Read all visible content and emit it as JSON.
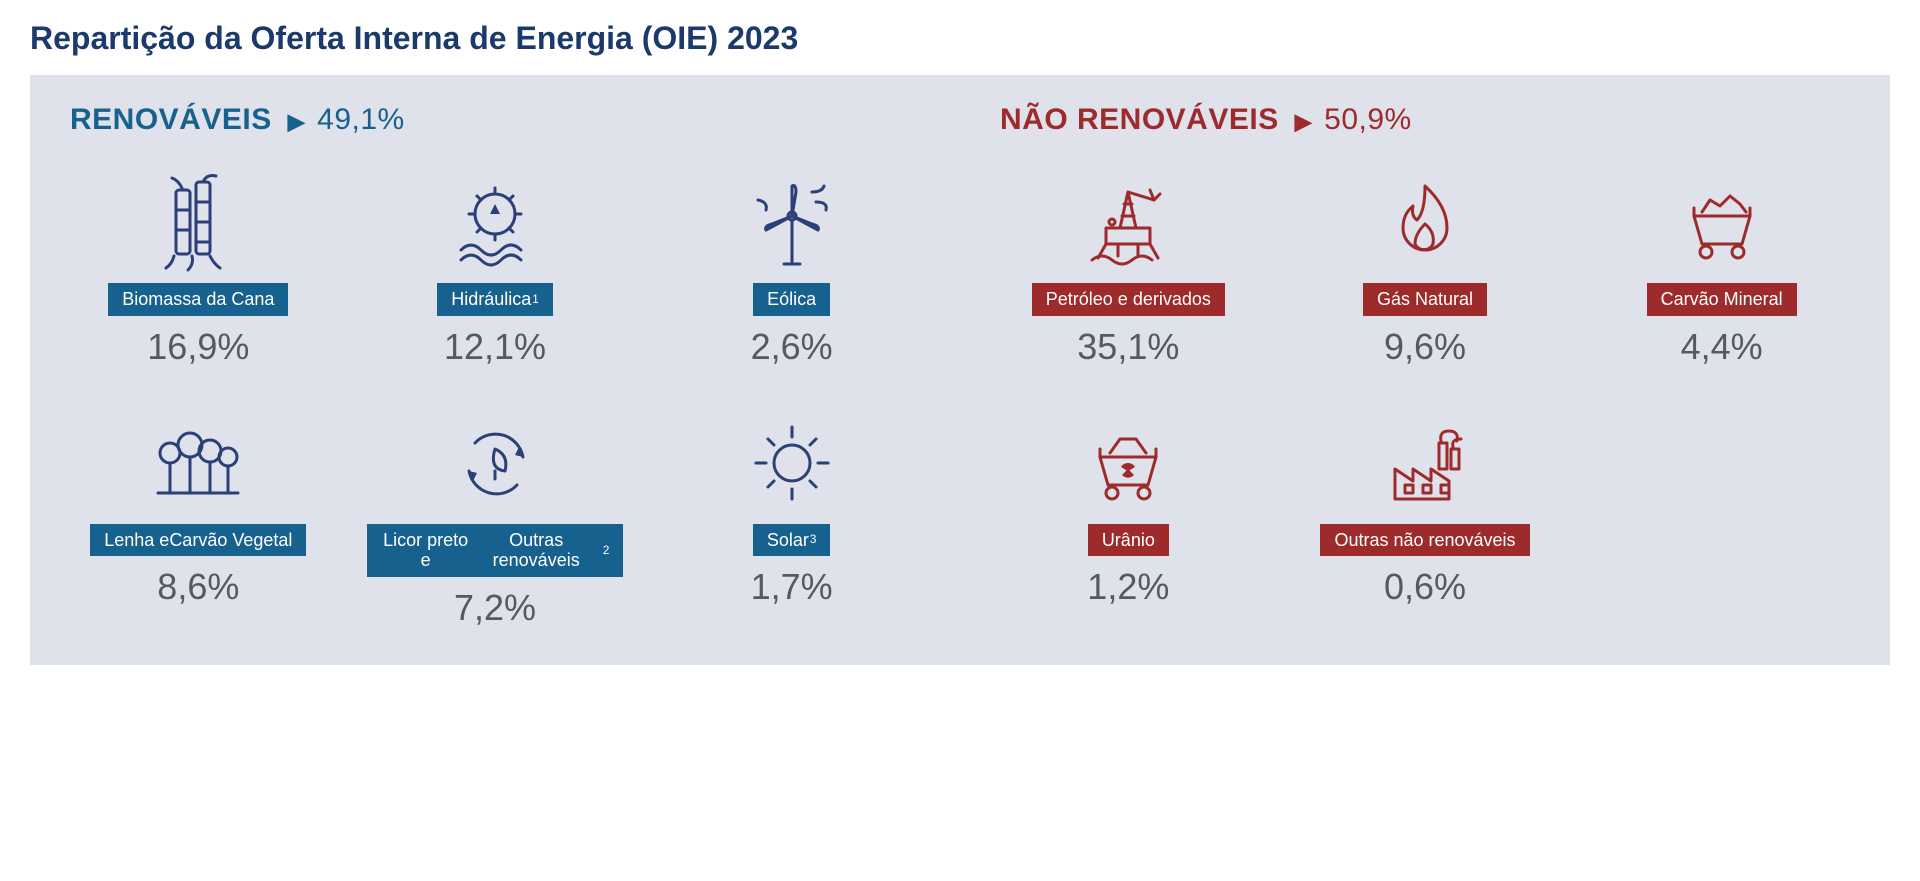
{
  "title": "Repartição da Oferta Interna de Energia (OIE) 2023",
  "colors": {
    "title": "#1b3a6b",
    "panel_bg": "#dfe2ea",
    "renew_header": "#17618f",
    "renew_badge_bg": "#17618f",
    "renew_icon_stroke": "#2b3f78",
    "nonrenew_header": "#9d2b2b",
    "nonrenew_badge_bg": "#9d2b2b",
    "nonrenew_icon_stroke": "#9d2b2b",
    "value_text": "#57595d",
    "badge_text": "#ffffff"
  },
  "renewables": {
    "header_label": "RENOVÁVEIS",
    "header_pct": "49,1%",
    "items": [
      {
        "icon": "bamboo",
        "label": "Biomassa da Cana",
        "value": "16,9%"
      },
      {
        "icon": "hydro",
        "label": "Hidráulica",
        "sup": "1",
        "value": "12,1%"
      },
      {
        "icon": "wind",
        "label": "Eólica",
        "value": "2,6%"
      },
      {
        "icon": "forest",
        "label": "Lenha e\nCarvão Vegetal",
        "value": "8,6%"
      },
      {
        "icon": "recycle",
        "label": "Licor preto e\nOutras renováveis",
        "sup": "2",
        "value": "7,2%"
      },
      {
        "icon": "sun",
        "label": "Solar",
        "sup": "3",
        "value": "1,7%"
      }
    ]
  },
  "nonrenewables": {
    "header_label": "NÃO RENOVÁVEIS",
    "header_pct": "50,9%",
    "items": [
      {
        "icon": "rig",
        "label": "Petróleo e derivados",
        "value": "35,1%"
      },
      {
        "icon": "flame",
        "label": "Gás Natural",
        "value": "9,6%"
      },
      {
        "icon": "cart",
        "label": "Carvão Mineral",
        "value": "4,4%"
      },
      {
        "icon": "uranium",
        "label": "Urânio",
        "value": "1,2%"
      },
      {
        "icon": "factory",
        "label": "Outras não renováveis",
        "value": "0,6%"
      }
    ]
  }
}
